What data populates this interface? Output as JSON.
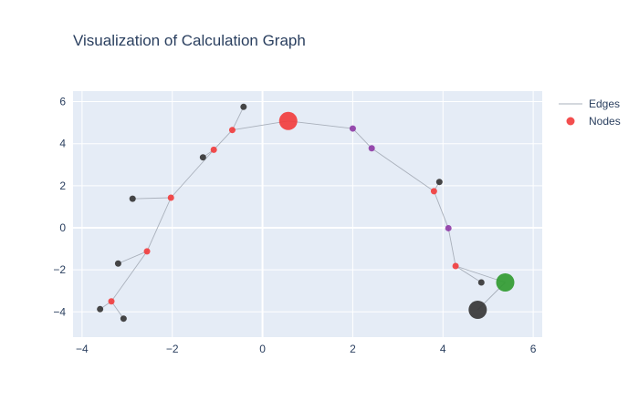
{
  "chart_data": {
    "type": "scatter",
    "title": "Visualization of Calculation Graph",
    "xlabel": "",
    "ylabel": "",
    "xlim": [
      -4.2,
      6.2
    ],
    "ylim": [
      -5.2,
      6.5
    ],
    "x_ticks": [
      -4,
      -2,
      0,
      2,
      4,
      6
    ],
    "y_ticks": [
      -4,
      -2,
      0,
      2,
      4,
      6
    ],
    "x_tick_labels": [
      "−4",
      "−2",
      "0",
      "2",
      "4",
      "6"
    ],
    "y_tick_labels": [
      "−4",
      "−2",
      "0",
      "2",
      "4",
      "6"
    ],
    "grid": true,
    "legend_position": "top-right",
    "colors": {
      "plot_bg": "#e5ecf6",
      "grid": "#ffffff",
      "edge": "#a9b0bb",
      "red": "#f23b3b",
      "dark": "#333333",
      "purple": "#8e3aa6",
      "green": "#2e9a2e"
    },
    "legend": [
      {
        "name": "Edges",
        "symbol": "line"
      },
      {
        "name": "Nodes",
        "symbol": "marker"
      }
    ],
    "nodes": [
      {
        "id": "n1",
        "x": 0.57,
        "y": 5.08,
        "size": "large",
        "color": "red"
      },
      {
        "id": "n2",
        "x": -0.67,
        "y": 4.65,
        "size": "small",
        "color": "red"
      },
      {
        "id": "n3",
        "x": -0.42,
        "y": 5.75,
        "size": "small",
        "color": "dark"
      },
      {
        "id": "n4",
        "x": -1.08,
        "y": 3.71,
        "size": "small",
        "color": "red"
      },
      {
        "id": "n5",
        "x": -1.32,
        "y": 3.35,
        "size": "small",
        "color": "dark"
      },
      {
        "id": "n6",
        "x": -2.03,
        "y": 1.43,
        "size": "small",
        "color": "red"
      },
      {
        "id": "n7",
        "x": -2.88,
        "y": 1.38,
        "size": "small",
        "color": "dark"
      },
      {
        "id": "n8",
        "x": -2.56,
        "y": -1.12,
        "size": "small",
        "color": "red"
      },
      {
        "id": "n9",
        "x": -3.2,
        "y": -1.7,
        "size": "small",
        "color": "dark"
      },
      {
        "id": "n10",
        "x": -3.35,
        "y": -3.5,
        "size": "small",
        "color": "red"
      },
      {
        "id": "n11",
        "x": -3.6,
        "y": -3.87,
        "size": "small",
        "color": "dark"
      },
      {
        "id": "n12",
        "x": -3.08,
        "y": -4.32,
        "size": "small",
        "color": "dark"
      },
      {
        "id": "n13",
        "x": 2.0,
        "y": 4.72,
        "size": "small",
        "color": "purple"
      },
      {
        "id": "n14",
        "x": 2.42,
        "y": 3.78,
        "size": "small",
        "color": "purple"
      },
      {
        "id": "n15",
        "x": 3.8,
        "y": 1.74,
        "size": "small",
        "color": "red"
      },
      {
        "id": "n16",
        "x": 3.92,
        "y": 2.18,
        "size": "small",
        "color": "dark"
      },
      {
        "id": "n17",
        "x": 4.12,
        "y": -0.02,
        "size": "small",
        "color": "purple"
      },
      {
        "id": "n18",
        "x": 4.28,
        "y": -1.82,
        "size": "small",
        "color": "red"
      },
      {
        "id": "n19",
        "x": 4.85,
        "y": -2.6,
        "size": "small",
        "color": "dark"
      },
      {
        "id": "n20",
        "x": 5.38,
        "y": -2.6,
        "size": "large",
        "color": "green"
      },
      {
        "id": "n21",
        "x": 4.77,
        "y": -3.9,
        "size": "large",
        "color": "dark"
      }
    ],
    "edges": [
      [
        "n3",
        "n2"
      ],
      [
        "n2",
        "n1"
      ],
      [
        "n2",
        "n4"
      ],
      [
        "n4",
        "n5"
      ],
      [
        "n4",
        "n6"
      ],
      [
        "n6",
        "n7"
      ],
      [
        "n6",
        "n8"
      ],
      [
        "n8",
        "n9"
      ],
      [
        "n8",
        "n10"
      ],
      [
        "n10",
        "n11"
      ],
      [
        "n10",
        "n12"
      ],
      [
        "n1",
        "n13"
      ],
      [
        "n13",
        "n14"
      ],
      [
        "n14",
        "n15"
      ],
      [
        "n15",
        "n16"
      ],
      [
        "n15",
        "n17"
      ],
      [
        "n17",
        "n18"
      ],
      [
        "n18",
        "n19"
      ],
      [
        "n18",
        "n20"
      ],
      [
        "n20",
        "n21"
      ]
    ]
  }
}
